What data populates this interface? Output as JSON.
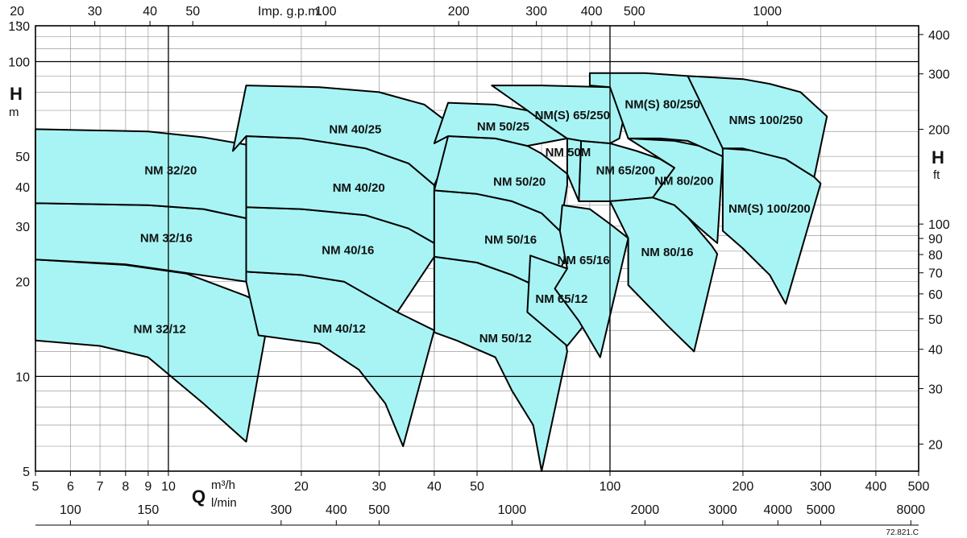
{
  "chart_data": {
    "type": "area",
    "scale": "log-log",
    "grid": true,
    "xlim": [
      5,
      500
    ],
    "ylim": [
      5,
      130
    ],
    "xlabel": "Q",
    "xlabel_unit": "m³/h",
    "xlabel_unit2": "l/min",
    "ylabel": "H",
    "ylabel_unit": "m",
    "ylabel_right": "H",
    "ylabel_right_unit": "ft",
    "top_axis_label": "Imp. g.p.m.",
    "ref_code": "72.821.C",
    "fill_color": "#a8f4f4",
    "x_ticks": [
      "5",
      "6",
      "7",
      "8",
      "9",
      "10",
      "20",
      "30",
      "40",
      "50",
      "100",
      "200",
      "300",
      "400",
      "500"
    ],
    "y_ticks": [
      "5",
      "10",
      "20",
      "30",
      "40",
      "50",
      "100",
      "130"
    ],
    "top_ticks": [
      "20",
      "30",
      "40",
      "50",
      "100",
      "200",
      "300",
      "400",
      "500",
      "1000"
    ],
    "bottom2_ticks": [
      "100",
      "150",
      "300",
      "400",
      "500",
      "1000",
      "2000",
      "3000",
      "4000",
      "5000",
      "8000"
    ],
    "right_ticks": [
      "20",
      "30",
      "40",
      "50",
      "60",
      "70",
      "80",
      "90",
      "100",
      "200",
      "300",
      "400"
    ],
    "zones": [
      {
        "label": "NM 32/12",
        "points": [
          [
            5,
            23.5
          ],
          [
            8,
            22.6
          ],
          [
            11,
            21.2
          ],
          [
            15,
            18.0
          ],
          [
            17,
            16.5
          ],
          [
            15,
            6.2
          ],
          [
            12,
            8.2
          ],
          [
            9,
            11.5
          ],
          [
            7,
            12.5
          ],
          [
            5,
            13
          ]
        ]
      },
      {
        "label": "NM 32/16",
        "points": [
          [
            5,
            35.5
          ],
          [
            9,
            35
          ],
          [
            12,
            34
          ],
          [
            15,
            31.8
          ],
          [
            17,
            29.5
          ],
          [
            15,
            20
          ],
          [
            11,
            21.3
          ],
          [
            8,
            22.7
          ],
          [
            5,
            23.5
          ]
        ]
      },
      {
        "label": "NM 32/20",
        "points": [
          [
            5,
            61
          ],
          [
            9,
            60
          ],
          [
            12,
            57.5
          ],
          [
            15,
            54.5
          ],
          [
            17,
            50
          ],
          [
            15,
            31.8
          ],
          [
            12,
            34
          ],
          [
            9,
            35
          ],
          [
            5,
            35.5
          ]
        ]
      },
      {
        "label": "NM 40/12",
        "points": [
          [
            15,
            21.5
          ],
          [
            20,
            21
          ],
          [
            25,
            20
          ],
          [
            30,
            18.5
          ],
          [
            33,
            16
          ],
          [
            40,
            14
          ],
          [
            34,
            6
          ],
          [
            31,
            8.2
          ],
          [
            27,
            10.5
          ],
          [
            22,
            12.7
          ],
          [
            16,
            13.5
          ],
          [
            15,
            20
          ]
        ]
      },
      {
        "label": "NM 40/16",
        "points": [
          [
            15,
            34.5
          ],
          [
            20,
            34
          ],
          [
            28,
            32.5
          ],
          [
            35,
            29.5
          ],
          [
            40,
            26.5
          ],
          [
            40,
            24
          ],
          [
            33,
            16
          ],
          [
            25,
            20
          ],
          [
            20,
            21
          ],
          [
            15,
            21.5
          ]
        ]
      },
      {
        "label": "NM 40/20",
        "points": [
          [
            15,
            58
          ],
          [
            20,
            57
          ],
          [
            28,
            53
          ],
          [
            35,
            47.5
          ],
          [
            40,
            40.5
          ],
          [
            40,
            39
          ],
          [
            40,
            26.5
          ],
          [
            35,
            29.5
          ],
          [
            28,
            32.5
          ],
          [
            20,
            34
          ],
          [
            15,
            34.5
          ]
        ]
      },
      {
        "label": "NM 40/25",
        "points": [
          [
            15,
            84
          ],
          [
            22,
            83
          ],
          [
            30,
            80
          ],
          [
            38,
            73
          ],
          [
            43,
            64
          ],
          [
            45,
            58
          ],
          [
            40,
            40.5
          ],
          [
            35,
            47.5
          ],
          [
            28,
            53
          ],
          [
            20,
            57
          ],
          [
            15,
            58
          ],
          [
            14,
            52
          ]
        ]
      },
      {
        "label": "NM 50/12",
        "points": [
          [
            40,
            24
          ],
          [
            50,
            23
          ],
          [
            60,
            21
          ],
          [
            70,
            19
          ],
          [
            77,
            16.5
          ],
          [
            80,
            12
          ],
          [
            70,
            5
          ],
          [
            67,
            7
          ],
          [
            60,
            9
          ],
          [
            55,
            11.5
          ],
          [
            45,
            13
          ],
          [
            40,
            13.8
          ]
        ]
      },
      {
        "label": "NM 50/16",
        "points": [
          [
            40,
            39
          ],
          [
            50,
            38
          ],
          [
            60,
            36
          ],
          [
            70,
            33
          ],
          [
            77,
            29
          ],
          [
            80,
            25
          ],
          [
            77,
            21.5
          ],
          [
            70,
            19
          ],
          [
            60,
            21
          ],
          [
            50,
            23
          ],
          [
            40,
            24
          ]
        ]
      },
      {
        "label": "NM 50/20",
        "points": [
          [
            43,
            58
          ],
          [
            55,
            57
          ],
          [
            65,
            54
          ],
          [
            70,
            51
          ],
          [
            80,
            44
          ],
          [
            80,
            40.5
          ],
          [
            78,
            32.5
          ],
          [
            77,
            29
          ],
          [
            70,
            33
          ],
          [
            60,
            36
          ],
          [
            50,
            38
          ],
          [
            40,
            39
          ]
        ]
      },
      {
        "label": "NM 50/25",
        "points": [
          [
            43,
            74
          ],
          [
            55,
            73
          ],
          [
            65,
            70
          ],
          [
            70,
            66
          ],
          [
            72,
            63
          ],
          [
            80,
            57
          ],
          [
            65,
            54
          ],
          [
            55,
            57
          ],
          [
            43,
            58
          ],
          [
            40,
            55
          ]
        ]
      },
      {
        "label": "NM 65/12",
        "points": [
          [
            66,
            24.2
          ],
          [
            80,
            22
          ],
          [
            90,
            19
          ],
          [
            89,
            15
          ],
          [
            80,
            12.5
          ],
          [
            65,
            16
          ]
        ]
      },
      {
        "label": "NM 65/16",
        "points": [
          [
            78,
            35
          ],
          [
            90,
            34
          ],
          [
            100,
            30.5
          ],
          [
            110,
            27.5
          ],
          [
            95,
            11.5
          ],
          [
            85,
            15
          ],
          [
            75,
            19
          ],
          [
            80,
            22
          ],
          [
            77,
            29
          ]
        ]
      },
      {
        "label": "NM 65/200",
        "points": [
          [
            86,
            56
          ],
          [
            100,
            55
          ],
          [
            115,
            52
          ],
          [
            130,
            49
          ],
          [
            140,
            46
          ],
          [
            125,
            37
          ],
          [
            100,
            36
          ],
          [
            85,
            36
          ]
        ]
      },
      {
        "label": "NM 50M",
        "points": [
          [
            72,
            63
          ],
          [
            80,
            59
          ],
          [
            86,
            56
          ],
          [
            85,
            36
          ],
          [
            80,
            44
          ],
          [
            80,
            57
          ]
        ]
      },
      {
        "label": "NM(S) 65/250",
        "points": [
          [
            54,
            84
          ],
          [
            70,
            84
          ],
          [
            100,
            83
          ],
          [
            110,
            78
          ],
          [
            105,
            57
          ],
          [
            100,
            55
          ],
          [
            86,
            56
          ],
          [
            80,
            57
          ],
          [
            72,
            63
          ],
          [
            65,
            70
          ]
        ]
      },
      {
        "label": "NM 80/16",
        "points": [
          [
            100,
            36
          ],
          [
            125,
            37
          ],
          [
            140,
            35
          ],
          [
            150,
            32
          ],
          [
            170,
            26
          ],
          [
            175,
            24.5
          ],
          [
            155,
            12
          ],
          [
            135,
            14.5
          ],
          [
            110,
            19.5
          ],
          [
            110,
            27.5
          ]
        ]
      },
      {
        "label": "NM 80/200",
        "points": [
          [
            110,
            57
          ],
          [
            140,
            56
          ],
          [
            170,
            53
          ],
          [
            180,
            50
          ],
          [
            175,
            26.5
          ],
          [
            160,
            29.5
          ],
          [
            140,
            35
          ],
          [
            125,
            37
          ],
          [
            140,
            46
          ]
        ]
      },
      {
        "label": "NM(S) 80/250",
        "points": [
          [
            90,
            92
          ],
          [
            120,
            92
          ],
          [
            150,
            90
          ],
          [
            180,
            87
          ],
          [
            200,
            77
          ],
          [
            180,
            50
          ],
          [
            150,
            56
          ],
          [
            130,
            57
          ],
          [
            110,
            57
          ],
          [
            100,
            83
          ],
          [
            90,
            84
          ]
        ]
      },
      {
        "label": "NM(S) 100/200",
        "points": [
          [
            180,
            53
          ],
          [
            220,
            52
          ],
          [
            250,
            49
          ],
          [
            290,
            43
          ],
          [
            300,
            41
          ],
          [
            250,
            17
          ],
          [
            230,
            21
          ],
          [
            200,
            25.5
          ],
          [
            180,
            29
          ]
        ]
      },
      {
        "label": "NMS 100/250",
        "points": [
          [
            150,
            90
          ],
          [
            200,
            88
          ],
          [
            230,
            85
          ],
          [
            270,
            80
          ],
          [
            310,
            67
          ],
          [
            290,
            43
          ],
          [
            250,
            49
          ],
          [
            200,
            53
          ],
          [
            180,
            53
          ]
        ]
      }
    ]
  }
}
